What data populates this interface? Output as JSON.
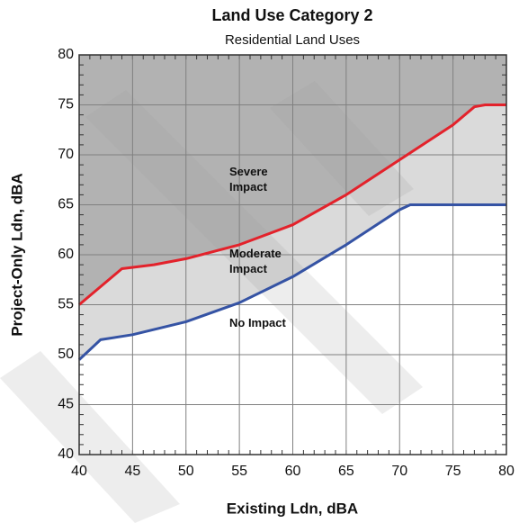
{
  "chart_data": {
    "type": "line",
    "title": "Land Use Category 2",
    "subtitle": "Residential Land Uses",
    "x_label": "Existing Ldn, dBA",
    "y_label": "Project-Only Ldn, dBA",
    "xlim": [
      40,
      80
    ],
    "ylim": [
      40,
      80
    ],
    "xticks": [
      40,
      45,
      50,
      55,
      60,
      65,
      70,
      75,
      80
    ],
    "yticks": [
      40,
      45,
      50,
      55,
      60,
      65,
      70,
      75,
      80
    ],
    "grid": true,
    "region_colors": [
      "#b2b2b2",
      "#dadada",
      "#ffffff"
    ],
    "series": [
      {
        "color": "#e3222b",
        "x": [
          40,
          44,
          47,
          50,
          55,
          60,
          65,
          70,
          75,
          77,
          78,
          80
        ],
        "values": [
          55,
          58.6,
          59,
          59.6,
          61,
          63,
          66,
          69.5,
          73,
          74.8,
          75,
          75
        ]
      },
      {
        "color": "#3553a4",
        "x": [
          40,
          42,
          45,
          50,
          55,
          60,
          65,
          70,
          71,
          80
        ],
        "values": [
          49.5,
          51.5,
          52,
          53.3,
          55.2,
          57.8,
          61,
          64.5,
          65,
          65
        ]
      }
    ],
    "annotations": [
      [
        "Severe",
        "Impact"
      ],
      [
        "Moderate",
        "Impact"
      ],
      [
        "No Impact"
      ]
    ]
  }
}
